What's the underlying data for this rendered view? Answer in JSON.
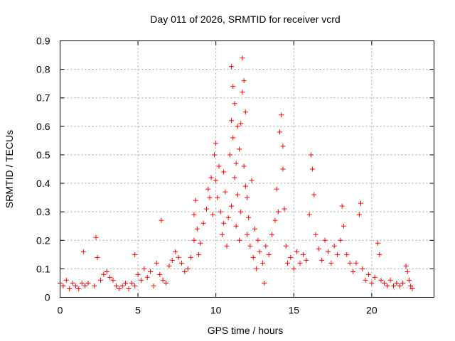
{
  "chart_data": {
    "type": "scatter",
    "title": "Day 011 of 2026, SRMTID for receiver vcrd",
    "xlabel": "GPS time / hours",
    "ylabel": "SRMTID / TECUs",
    "xlim": [
      0,
      24
    ],
    "ylim": [
      0,
      0.9
    ],
    "x_ticks": [
      "0",
      "5",
      "10",
      "15",
      "20"
    ],
    "y_ticks": [
      "0",
      "0.1",
      "0.2",
      "0.3",
      "0.4",
      "0.5",
      "0.6",
      "0.7",
      "0.8",
      "0.9"
    ],
    "grid": true,
    "marker": "plus",
    "series": [
      {
        "name": "SRMTID",
        "color": "#ff0000",
        "points": [
          [
            0.0,
            0.05
          ],
          [
            0.2,
            0.04
          ],
          [
            0.4,
            0.06
          ],
          [
            0.6,
            0.03
          ],
          [
            0.8,
            0.05
          ],
          [
            1.0,
            0.04
          ],
          [
            1.2,
            0.03
          ],
          [
            1.4,
            0.05
          ],
          [
            1.6,
            0.04
          ],
          [
            1.8,
            0.05
          ],
          [
            1.5,
            0.16
          ],
          [
            2.2,
            0.04
          ],
          [
            2.3,
            0.21
          ],
          [
            2.4,
            0.14
          ],
          [
            2.6,
            0.06
          ],
          [
            2.8,
            0.08
          ],
          [
            3.0,
            0.09
          ],
          [
            3.2,
            0.07
          ],
          [
            3.4,
            0.06
          ],
          [
            3.6,
            0.04
          ],
          [
            3.8,
            0.03
          ],
          [
            4.0,
            0.04
          ],
          [
            4.2,
            0.05
          ],
          [
            4.4,
            0.03
          ],
          [
            4.6,
            0.05
          ],
          [
            4.8,
            0.04
          ],
          [
            4.8,
            0.15
          ],
          [
            5.0,
            0.08
          ],
          [
            5.2,
            0.06
          ],
          [
            5.4,
            0.1
          ],
          [
            5.6,
            0.07
          ],
          [
            5.8,
            0.09
          ],
          [
            6.0,
            0.04
          ],
          [
            6.2,
            0.12
          ],
          [
            6.4,
            0.08
          ],
          [
            6.5,
            0.27
          ],
          [
            6.6,
            0.06
          ],
          [
            6.8,
            0.05
          ],
          [
            7.0,
            0.11
          ],
          [
            7.2,
            0.13
          ],
          [
            7.4,
            0.16
          ],
          [
            7.6,
            0.14
          ],
          [
            7.8,
            0.12
          ],
          [
            8.0,
            0.09
          ],
          [
            8.2,
            0.1
          ],
          [
            8.4,
            0.14
          ],
          [
            8.6,
            0.2
          ],
          [
            8.6,
            0.29
          ],
          [
            8.7,
            0.34
          ],
          [
            8.8,
            0.24
          ],
          [
            8.9,
            0.15
          ],
          [
            9.0,
            0.19
          ],
          [
            9.2,
            0.26
          ],
          [
            9.4,
            0.31
          ],
          [
            9.5,
            0.38
          ],
          [
            9.6,
            0.35
          ],
          [
            9.7,
            0.42
          ],
          [
            9.8,
            0.29
          ],
          [
            9.9,
            0.5
          ],
          [
            10.0,
            0.54
          ],
          [
            10.0,
            0.41
          ],
          [
            10.1,
            0.35
          ],
          [
            10.2,
            0.46
          ],
          [
            10.3,
            0.3
          ],
          [
            10.4,
            0.22
          ],
          [
            10.5,
            0.44
          ],
          [
            10.5,
            0.26
          ],
          [
            10.6,
            0.37
          ],
          [
            10.7,
            0.18
          ],
          [
            10.8,
            0.28
          ],
          [
            10.9,
            0.5
          ],
          [
            11.0,
            0.81
          ],
          [
            11.0,
            0.62
          ],
          [
            11.0,
            0.32
          ],
          [
            11.1,
            0.74
          ],
          [
            11.1,
            0.56
          ],
          [
            11.2,
            0.42
          ],
          [
            11.2,
            0.68
          ],
          [
            11.3,
            0.47
          ],
          [
            11.3,
            0.25
          ],
          [
            11.4,
            0.6
          ],
          [
            11.4,
            0.36
          ],
          [
            11.5,
            0.52
          ],
          [
            11.5,
            0.2
          ],
          [
            11.6,
            0.61
          ],
          [
            11.6,
            0.3
          ],
          [
            11.7,
            0.84
          ],
          [
            11.7,
            0.72
          ],
          [
            11.8,
            0.76
          ],
          [
            11.8,
            0.46
          ],
          [
            11.9,
            0.65
          ],
          [
            11.9,
            0.39
          ],
          [
            12.0,
            0.35
          ],
          [
            12.0,
            0.22
          ],
          [
            12.1,
            0.28
          ],
          [
            12.2,
            0.18
          ],
          [
            12.3,
            0.41
          ],
          [
            12.4,
            0.14
          ],
          [
            12.5,
            0.24
          ],
          [
            12.6,
            0.1
          ],
          [
            12.7,
            0.2
          ],
          [
            12.8,
            0.16
          ],
          [
            13.0,
            0.12
          ],
          [
            13.1,
            0.05
          ],
          [
            13.2,
            0.18
          ],
          [
            13.4,
            0.15
          ],
          [
            13.6,
            0.22
          ],
          [
            13.8,
            0.27
          ],
          [
            13.9,
            0.38
          ],
          [
            14.0,
            0.3
          ],
          [
            14.1,
            0.58
          ],
          [
            14.2,
            0.64
          ],
          [
            14.3,
            0.53
          ],
          [
            14.3,
            0.45
          ],
          [
            14.4,
            0.31
          ],
          [
            14.5,
            0.18
          ],
          [
            14.6,
            0.12
          ],
          [
            14.8,
            0.14
          ],
          [
            15.0,
            0.1
          ],
          [
            15.2,
            0.16
          ],
          [
            15.4,
            0.12
          ],
          [
            15.6,
            0.15
          ],
          [
            15.8,
            0.13
          ],
          [
            16.0,
            0.29
          ],
          [
            16.1,
            0.5
          ],
          [
            16.2,
            0.45
          ],
          [
            16.3,
            0.36
          ],
          [
            16.4,
            0.22
          ],
          [
            16.6,
            0.17
          ],
          [
            16.8,
            0.13
          ],
          [
            17.0,
            0.2
          ],
          [
            17.2,
            0.16
          ],
          [
            17.4,
            0.12
          ],
          [
            17.6,
            0.18
          ],
          [
            17.8,
            0.15
          ],
          [
            18.0,
            0.2
          ],
          [
            18.1,
            0.32
          ],
          [
            18.2,
            0.25
          ],
          [
            18.4,
            0.15
          ],
          [
            18.6,
            0.12
          ],
          [
            18.8,
            0.09
          ],
          [
            19.0,
            0.12
          ],
          [
            19.2,
            0.29
          ],
          [
            19.3,
            0.33
          ],
          [
            19.4,
            0.1
          ],
          [
            19.6,
            0.06
          ],
          [
            19.8,
            0.08
          ],
          [
            20.0,
            0.05
          ],
          [
            20.2,
            0.07
          ],
          [
            20.4,
            0.19
          ],
          [
            20.5,
            0.15
          ],
          [
            20.6,
            0.06
          ],
          [
            20.8,
            0.05
          ],
          [
            21.0,
            0.04
          ],
          [
            21.2,
            0.06
          ],
          [
            21.4,
            0.04
          ],
          [
            21.6,
            0.05
          ],
          [
            21.8,
            0.04
          ],
          [
            22.0,
            0.05
          ],
          [
            22.2,
            0.11
          ],
          [
            22.3,
            0.09
          ],
          [
            22.4,
            0.06
          ],
          [
            22.5,
            0.04
          ],
          [
            22.6,
            0.03
          ]
        ]
      }
    ]
  }
}
